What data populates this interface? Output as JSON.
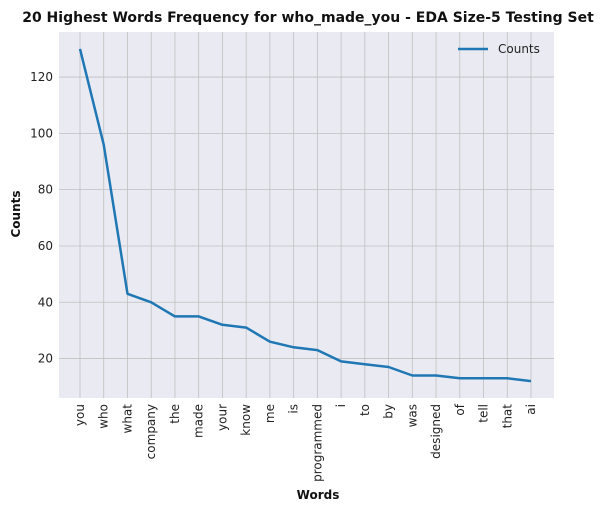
{
  "chart_data": {
    "type": "line",
    "title": "20 Highest Words Frequency for who_made_you - EDA Size-5 Testing Set",
    "xlabel": "Words",
    "ylabel": "Counts",
    "categories": [
      "you",
      "who",
      "what",
      "company",
      "the",
      "made",
      "your",
      "know",
      "me",
      "is",
      "programmed",
      "i",
      "to",
      "by",
      "was",
      "designed",
      "of",
      "tell",
      "that",
      "ai"
    ],
    "series": [
      {
        "name": "Counts",
        "color": "#1f77b4",
        "values": [
          130,
          96,
          43,
          40,
          35,
          35,
          32,
          31,
          26,
          24,
          23,
          19,
          18,
          17,
          14,
          14,
          13,
          13,
          13,
          12
        ]
      }
    ],
    "ylim": [
      6,
      136
    ],
    "yticks": [
      20,
      40,
      60,
      80,
      100,
      120
    ],
    "grid": true,
    "legend_position": "top-right",
    "colors": {
      "plot_bg": "#eaeaf2",
      "grid": "#c0c0c0",
      "line": "#1f77b4"
    }
  }
}
